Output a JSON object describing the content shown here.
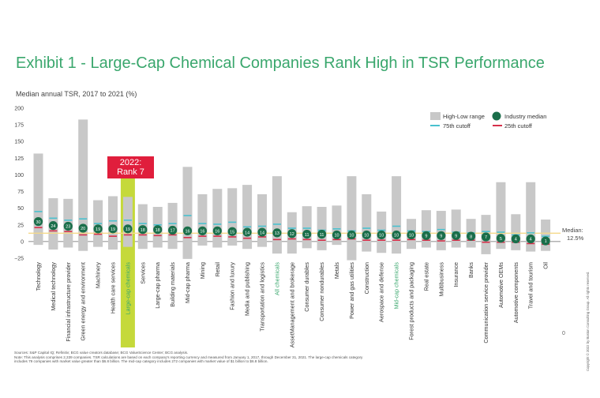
{
  "title": "Exhibit 1 - Large-Cap Chemical Companies Rank High in TSR Performance",
  "subtitle": "Median annual TSR, 2017 to 2021 (%)",
  "legend": {
    "range": "High-Low range",
    "median": "Industry median",
    "p75": "75th cutoff",
    "p25": "25th cutoff"
  },
  "callout": {
    "line1": "2022:",
    "line2": "Rank 7"
  },
  "median_label": {
    "line1": "Median:",
    "line2": "12.5%"
  },
  "notes": {
    "line1": "Sources: S&P Capital IQ; Refinitiv; BCG value creators database; BCG ValueScience  Center; BCG analysis.",
    "line2": "Note: This analysis comprises 2,339 companies. TSR calculations are based on each company's reporting currency and measured from January 1, 2017, through December 31, 2021. The large-cap chemicals category",
    "line3": "includes 79 companies with market value greater than $6.8 billion. The mid-cap category includes 272 companies with market value of $1 billion to $6.8 billion."
  },
  "copyright": "Copyright © 2022 by Boston Consulting Group. All rights reserved.",
  "page_number": "0",
  "colors": {
    "accent": "#3aa76d",
    "bar": "#c8c8c8",
    "median_dot": "#1a6e4a",
    "p75": "#49c1cf",
    "p25": "#d6304a",
    "highlight": "#c5d93a",
    "callout_bg": "#e01e3c",
    "median_line": "#f5d98a"
  },
  "chart_data": {
    "type": "range-bar",
    "ylim": [
      -25,
      200
    ],
    "yticks": [
      -25,
      0,
      25,
      50,
      75,
      100,
      125,
      150,
      175,
      200
    ],
    "overall_median": 12.5,
    "highlight_category": "Large-cap chemicals",
    "categories": [
      {
        "name": "Technology",
        "high": 132,
        "low": -5,
        "median": 30,
        "p75": 45,
        "p25": 21
      },
      {
        "name": "Medical technology",
        "high": 65,
        "low": -12,
        "median": 24,
        "p75": 35,
        "p25": 16
      },
      {
        "name": "Financial infrastructure provider",
        "high": 64,
        "low": -9,
        "median": 23,
        "p75": 32,
        "p25": 15
      },
      {
        "name": "Green energy and environment",
        "high": 183,
        "low": -14,
        "median": 20,
        "p75": 34,
        "p25": 10
      },
      {
        "name": "Machinery",
        "high": 62,
        "low": -8,
        "median": 19,
        "p75": 27,
        "p25": 11
      },
      {
        "name": "Health care services",
        "high": 68,
        "low": -12,
        "median": 19,
        "p75": 31,
        "p25": 8
      },
      {
        "name": "Large-cap chemicals",
        "high": 67,
        "low": -8,
        "median": 19,
        "p75": 32,
        "p25": 10
      },
      {
        "name": "Services",
        "high": 56,
        "low": -11,
        "median": 18,
        "p75": 27,
        "p25": 10
      },
      {
        "name": "Large-cap pharma",
        "high": 52,
        "low": -9,
        "median": 18,
        "p75": 25,
        "p25": 9
      },
      {
        "name": "Building materials",
        "high": 58,
        "low": -11,
        "median": 17,
        "p75": 27,
        "p25": 10
      },
      {
        "name": "Mid-cap pharma",
        "high": 112,
        "low": -26,
        "median": 16,
        "p75": 39,
        "p25": 6
      },
      {
        "name": "Mining",
        "high": 71,
        "low": -6,
        "median": 16,
        "p75": 27,
        "p25": 8
      },
      {
        "name": "Retail",
        "high": 79,
        "low": -9,
        "median": 16,
        "p75": 26,
        "p25": 8
      },
      {
        "name": "Fashion and luxury",
        "high": 80,
        "low": -6,
        "median": 15,
        "p75": 29,
        "p25": 7
      },
      {
        "name": "Media and publishing",
        "high": 85,
        "low": -11,
        "median": 14,
        "p75": 22,
        "p25": 5
      },
      {
        "name": "Transportation and logistics",
        "high": 71,
        "low": -8,
        "median": 14,
        "p75": 23,
        "p25": 7
      },
      {
        "name": "All chemicals",
        "high": 98,
        "low": -18,
        "median": 13,
        "p75": 26,
        "p25": 3
      },
      {
        "name": "AssetManagement and brokerage",
        "high": 44,
        "low": -18,
        "median": 12,
        "p75": 20,
        "p25": 4
      },
      {
        "name": "Consumer durables",
        "high": 53,
        "low": -10,
        "median": 11,
        "p75": 20,
        "p25": 3
      },
      {
        "name": "Consumer nondurables",
        "high": 52,
        "low": -13,
        "median": 11,
        "p75": 17,
        "p25": 2
      },
      {
        "name": "Metals",
        "high": 54,
        "low": -5,
        "median": 10,
        "p75": 19,
        "p25": 3
      },
      {
        "name": "Power and gas utilities",
        "high": 98,
        "low": -28,
        "median": 10,
        "p75": 16,
        "p25": 4
      },
      {
        "name": "Construction",
        "high": 71,
        "low": -15,
        "median": 10,
        "p75": 20,
        "p25": 2
      },
      {
        "name": "Aerospace and defense",
        "high": 45,
        "low": -17,
        "median": 10,
        "p75": 17,
        "p25": 2
      },
      {
        "name": "Mid-cap chemicals",
        "high": 98,
        "low": -18,
        "median": 10,
        "p75": 23,
        "p25": 2
      },
      {
        "name": "Forest products and packaging",
        "high": 34,
        "low": -11,
        "median": 10,
        "p75": 16,
        "p25": 3
      },
      {
        "name": "Real estate",
        "high": 47,
        "low": -9,
        "median": 9,
        "p75": 15,
        "p25": 2
      },
      {
        "name": "Multibusiness",
        "high": 46,
        "low": -13,
        "median": 9,
        "p75": 18,
        "p25": 1
      },
      {
        "name": "Insurance",
        "high": 48,
        "low": -9,
        "median": 9,
        "p75": 14,
        "p25": 2
      },
      {
        "name": "Banks",
        "high": 34,
        "low": -9,
        "median": 8,
        "p75": 13,
        "p25": 2
      },
      {
        "name": "Communication service provider",
        "high": 40,
        "low": -19,
        "median": 7,
        "p75": 15,
        "p25": -1
      },
      {
        "name": "Automotive OEMs",
        "high": 89,
        "low": -11,
        "median": 5,
        "p75": 14,
        "p25": -1
      },
      {
        "name": "Automotive components",
        "high": 41,
        "low": -13,
        "median": 4,
        "p75": 10,
        "p25": -1
      },
      {
        "name": "Travel and tourism",
        "high": 89,
        "low": -15,
        "median": 4,
        "p75": 13,
        "p25": -3
      },
      {
        "name": "Oil",
        "high": 33,
        "low": -14,
        "median": 1,
        "p75": 8,
        "p25": -4
      }
    ]
  }
}
